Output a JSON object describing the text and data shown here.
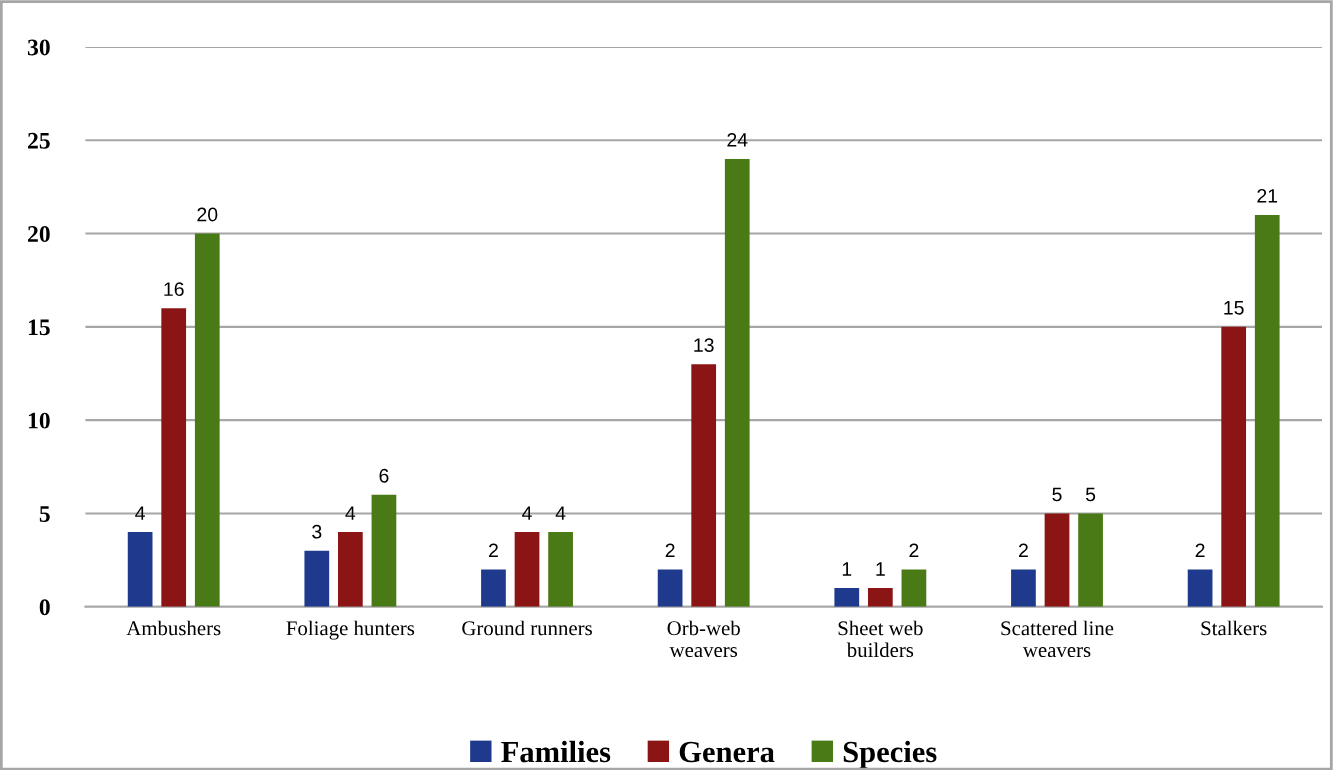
{
  "chart_data": {
    "type": "bar",
    "categories": [
      "Ambushers",
      "Foliage hunters",
      "Ground runners",
      "Orb-web\nweavers",
      "Sheet web\nbuilders",
      "Scattered line\nweavers",
      "Stalkers"
    ],
    "series": [
      {
        "name": "Families",
        "color": "#1f3a8c",
        "values": [
          4,
          3,
          2,
          2,
          1,
          2,
          2
        ]
      },
      {
        "name": "Genera",
        "color": "#8b1414",
        "values": [
          16,
          4,
          4,
          13,
          1,
          5,
          15
        ]
      },
      {
        "name": "Species",
        "color": "#4a7a16",
        "values": [
          20,
          6,
          4,
          24,
          2,
          5,
          21
        ]
      }
    ],
    "ylim": [
      0,
      30
    ],
    "yticks": [
      0,
      5,
      10,
      15,
      20,
      25,
      30
    ],
    "grid": "y",
    "legend": "bottom",
    "data_labels": true
  }
}
